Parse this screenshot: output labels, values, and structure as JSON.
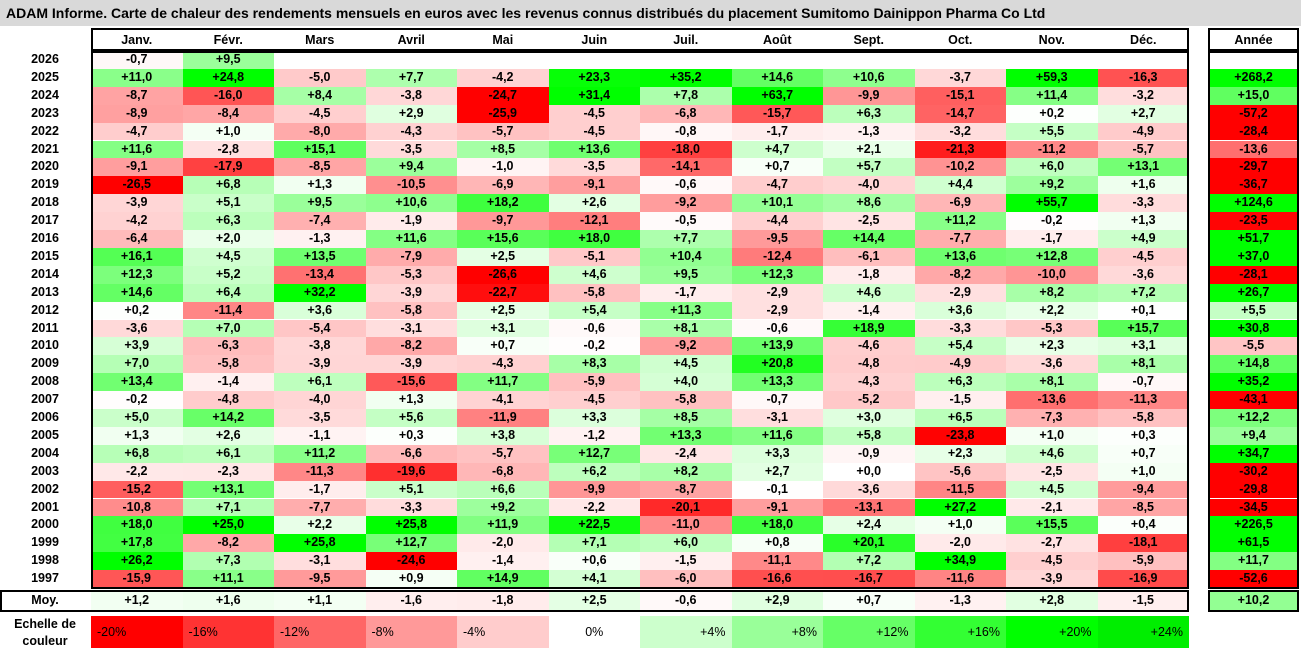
{
  "title": "ADAM Informe. Carte de chaleur des rendements mensuels en euros avec les revenus connus distribués du placement Sumitomo Dainippon Pharma Co Ltd",
  "year_header": "Année",
  "avg_label": "Moy.",
  "scale_label": "Echelle de couleur",
  "chart_data": {
    "type": "heatmap",
    "title": "ADAM Informe. Carte de chaleur des rendements mensuels en euros avec les revenus connus distribués du placement Sumitomo Dainippon Pharma Co Ltd",
    "columns": [
      "Janv.",
      "Févr.",
      "Mars",
      "Avril",
      "Mai",
      "Juin",
      "Juil.",
      "Août",
      "Sept.",
      "Oct.",
      "Nov.",
      "Déc."
    ],
    "rows": [
      {
        "year": "2026",
        "values": [
          "-0,7",
          "+9,5",
          null,
          null,
          null,
          null,
          null,
          null,
          null,
          null,
          null,
          null
        ],
        "annual": null
      },
      {
        "year": "2025",
        "values": [
          "+11,0",
          "+24,8",
          "-5,0",
          "+7,7",
          "-4,2",
          "+23,3",
          "+35,2",
          "+14,6",
          "+10,6",
          "-3,7",
          "+59,3",
          "-16,3"
        ],
        "annual": "+268,2"
      },
      {
        "year": "2024",
        "values": [
          "-8,7",
          "-16,0",
          "+8,4",
          "-3,8",
          "-24,7",
          "+31,4",
          "+7,8",
          "+63,7",
          "-9,9",
          "-15,1",
          "+11,4",
          "-3,2"
        ],
        "annual": "+15,0"
      },
      {
        "year": "2023",
        "values": [
          "-8,9",
          "-8,4",
          "-4,5",
          "+2,9",
          "-25,9",
          "-4,5",
          "-6,8",
          "-15,7",
          "+6,3",
          "-14,7",
          "+0,2",
          "+2,7"
        ],
        "annual": "-57,2"
      },
      {
        "year": "2022",
        "values": [
          "-4,7",
          "+1,0",
          "-8,0",
          "-4,3",
          "-5,7",
          "-4,5",
          "-0,8",
          "-1,7",
          "-1,3",
          "-3,2",
          "+5,5",
          "-4,9"
        ],
        "annual": "-28,4"
      },
      {
        "year": "2021",
        "values": [
          "+11,6",
          "-2,8",
          "+15,1",
          "-3,5",
          "+8,5",
          "+13,6",
          "-18,0",
          "+4,7",
          "+2,1",
          "-21,3",
          "-11,2",
          "-5,7"
        ],
        "annual": "-13,6"
      },
      {
        "year": "2020",
        "values": [
          "-9,1",
          "-17,9",
          "-8,5",
          "+9,4",
          "-1,0",
          "-3,5",
          "-14,1",
          "+0,7",
          "+5,7",
          "-10,2",
          "+6,0",
          "+13,1"
        ],
        "annual": "-29,7"
      },
      {
        "year": "2019",
        "values": [
          "-26,5",
          "+6,8",
          "+1,3",
          "-10,5",
          "-6,9",
          "-9,1",
          "-0,6",
          "-4,7",
          "-4,0",
          "+4,4",
          "+9,2",
          "+1,6"
        ],
        "annual": "-36,7"
      },
      {
        "year": "2018",
        "values": [
          "-3,9",
          "+5,1",
          "+9,5",
          "+10,6",
          "+18,2",
          "+2,6",
          "-9,2",
          "+10,1",
          "+8,6",
          "-6,9",
          "+55,7",
          "-3,3"
        ],
        "annual": "+124,6"
      },
      {
        "year": "2017",
        "values": [
          "-4,2",
          "+6,3",
          "-7,4",
          "-1,9",
          "-9,7",
          "-12,1",
          "-0,5",
          "-4,4",
          "-2,5",
          "+11,2",
          "-0,2",
          "+1,3"
        ],
        "annual": "-23,5"
      },
      {
        "year": "2016",
        "values": [
          "-6,4",
          "+2,0",
          "-1,3",
          "+11,6",
          "+15,6",
          "+18,0",
          "+7,7",
          "-9,5",
          "+14,4",
          "-7,7",
          "-1,7",
          "+4,9"
        ],
        "annual": "+51,7"
      },
      {
        "year": "2015",
        "values": [
          "+16,1",
          "+4,5",
          "+13,5",
          "-7,9",
          "+2,5",
          "-5,1",
          "+10,4",
          "-12,4",
          "-6,1",
          "+13,6",
          "+12,8",
          "-4,5"
        ],
        "annual": "+37,0"
      },
      {
        "year": "2014",
        "values": [
          "+12,3",
          "+5,2",
          "-13,4",
          "-5,3",
          "-26,6",
          "+4,6",
          "+9,5",
          "+12,3",
          "-1,8",
          "-8,2",
          "-10,0",
          "-3,6"
        ],
        "annual": "-28,1"
      },
      {
        "year": "2013",
        "values": [
          "+14,6",
          "+6,4",
          "+32,2",
          "-3,9",
          "-22,7",
          "-5,8",
          "-1,7",
          "-2,9",
          "+4,6",
          "-2,9",
          "+8,2",
          "+7,2"
        ],
        "annual": "+26,7"
      },
      {
        "year": "2012",
        "values": [
          "+0,2",
          "-11,4",
          "+3,6",
          "-5,8",
          "+2,5",
          "+5,4",
          "+11,3",
          "-2,9",
          "-1,4",
          "+3,6",
          "+2,2",
          "+0,1"
        ],
        "annual": "+5,5"
      },
      {
        "year": "2011",
        "values": [
          "-3,6",
          "+7,0",
          "-5,4",
          "-3,1",
          "+3,1",
          "-0,6",
          "+8,1",
          "-0,6",
          "+18,9",
          "-3,3",
          "-5,3",
          "+15,7"
        ],
        "annual": "+30,8"
      },
      {
        "year": "2010",
        "values": [
          "+3,9",
          "-6,3",
          "-3,8",
          "-8,2",
          "+0,7",
          "-0,2",
          "-9,2",
          "+13,9",
          "-4,6",
          "+5,4",
          "+2,3",
          "+3,1"
        ],
        "annual": "-5,5"
      },
      {
        "year": "2009",
        "values": [
          "+7,0",
          "-5,8",
          "-3,9",
          "-3,9",
          "-4,3",
          "+8,3",
          "+4,5",
          "+20,8",
          "-4,8",
          "-4,9",
          "-3,6",
          "+8,1"
        ],
        "annual": "+14,8"
      },
      {
        "year": "2008",
        "values": [
          "+13,4",
          "-1,4",
          "+6,1",
          "-15,6",
          "+11,7",
          "-5,9",
          "+4,0",
          "+13,3",
          "-4,3",
          "+6,3",
          "+8,1",
          "-0,7"
        ],
        "annual": "+35,2"
      },
      {
        "year": "2007",
        "values": [
          "-0,2",
          "-4,8",
          "-4,0",
          "+1,3",
          "-4,1",
          "-4,5",
          "-5,8",
          "-0,7",
          "-5,2",
          "-1,5",
          "-13,6",
          "-11,3"
        ],
        "annual": "-43,1"
      },
      {
        "year": "2006",
        "values": [
          "+5,0",
          "+14,2",
          "-3,5",
          "+5,6",
          "-11,9",
          "+3,3",
          "+8,5",
          "-3,1",
          "+3,0",
          "+6,5",
          "-7,3",
          "-5,8"
        ],
        "annual": "+12,2"
      },
      {
        "year": "2005",
        "values": [
          "+1,3",
          "+2,6",
          "-1,1",
          "+0,3",
          "+3,8",
          "-1,2",
          "+13,3",
          "+11,6",
          "+5,8",
          "-23,8",
          "+1,0",
          "+0,3"
        ],
        "annual": "+9,4"
      },
      {
        "year": "2004",
        "values": [
          "+6,8",
          "+6,1",
          "+11,2",
          "-6,6",
          "-5,7",
          "+12,7",
          "-2,4",
          "+3,3",
          "-0,9",
          "+2,3",
          "+4,6",
          "+0,7"
        ],
        "annual": "+34,7"
      },
      {
        "year": "2003",
        "values": [
          "-2,2",
          "-2,3",
          "-11,3",
          "-19,6",
          "-6,8",
          "+6,2",
          "+8,2",
          "+2,7",
          "+0,0",
          "-5,6",
          "-2,5",
          "+1,0"
        ],
        "annual": "-30,2"
      },
      {
        "year": "2002",
        "values": [
          "-15,2",
          "+13,1",
          "-1,7",
          "+5,1",
          "+6,6",
          "-9,9",
          "-8,7",
          "-0,1",
          "-3,6",
          "-11,5",
          "+4,5",
          "-9,4"
        ],
        "annual": "-29,8"
      },
      {
        "year": "2001",
        "values": [
          "-10,8",
          "+7,1",
          "-7,7",
          "-3,3",
          "+9,2",
          "-2,2",
          "-20,1",
          "-9,1",
          "-13,1",
          "+27,2",
          "-2,1",
          "-8,5"
        ],
        "annual": "-34,5"
      },
      {
        "year": "2000",
        "values": [
          "+18,0",
          "+25,0",
          "+2,2",
          "+25,8",
          "+11,9",
          "+22,5",
          "-11,0",
          "+18,0",
          "+2,4",
          "+1,0",
          "+15,5",
          "+0,4"
        ],
        "annual": "+226,5"
      },
      {
        "year": "1999",
        "values": [
          "+17,8",
          "-8,2",
          "+25,8",
          "+12,7",
          "-2,0",
          "+7,1",
          "+6,0",
          "+0,8",
          "+20,1",
          "-2,0",
          "-2,7",
          "-18,1"
        ],
        "annual": "+61,5"
      },
      {
        "year": "1998",
        "values": [
          "+26,2",
          "+7,3",
          "-3,1",
          "-24,6",
          "-1,4",
          "+0,6",
          "-1,5",
          "-11,1",
          "+7,2",
          "+34,9",
          "-4,5",
          "-5,9"
        ],
        "annual": "+11,7"
      },
      {
        "year": "1997",
        "values": [
          "-15,9",
          "+11,1",
          "-9,5",
          "+0,9",
          "+14,9",
          "+4,1",
          "-6,0",
          "-16,6",
          "-16,7",
          "-11,6",
          "-3,9",
          "-16,9"
        ],
        "annual": "-52,6"
      }
    ],
    "average": {
      "values": [
        "+1,2",
        "+1,6",
        "+1,1",
        "-1,6",
        "-1,8",
        "+2,5",
        "-0,6",
        "+2,9",
        "+0,7",
        "-1,3",
        "+2,8",
        "-1,5"
      ],
      "annual": "+10,2"
    },
    "color_scale": [
      {
        "label": "-20%",
        "value": -20,
        "color": "#ff0000"
      },
      {
        "label": "-16%",
        "value": -16,
        "color": "#ff3333"
      },
      {
        "label": "-12%",
        "value": -12,
        "color": "#ff6666"
      },
      {
        "label": "-8%",
        "value": -8,
        "color": "#ff9999"
      },
      {
        "label": "-4%",
        "value": -4,
        "color": "#ffcccc"
      },
      {
        "label": "0%",
        "value": 0,
        "color": "#ffffff"
      },
      {
        "label": "+4%",
        "value": 4,
        "color": "#ccffcc"
      },
      {
        "label": "+8%",
        "value": 8,
        "color": "#99ff99"
      },
      {
        "label": "+12%",
        "value": 12,
        "color": "#66ff66"
      },
      {
        "label": "+16%",
        "value": 16,
        "color": "#33ff33"
      },
      {
        "label": "+20%",
        "value": 20,
        "color": "#00ff00"
      },
      {
        "label": "+24%",
        "value": 24,
        "color": "#00ee00"
      }
    ]
  }
}
